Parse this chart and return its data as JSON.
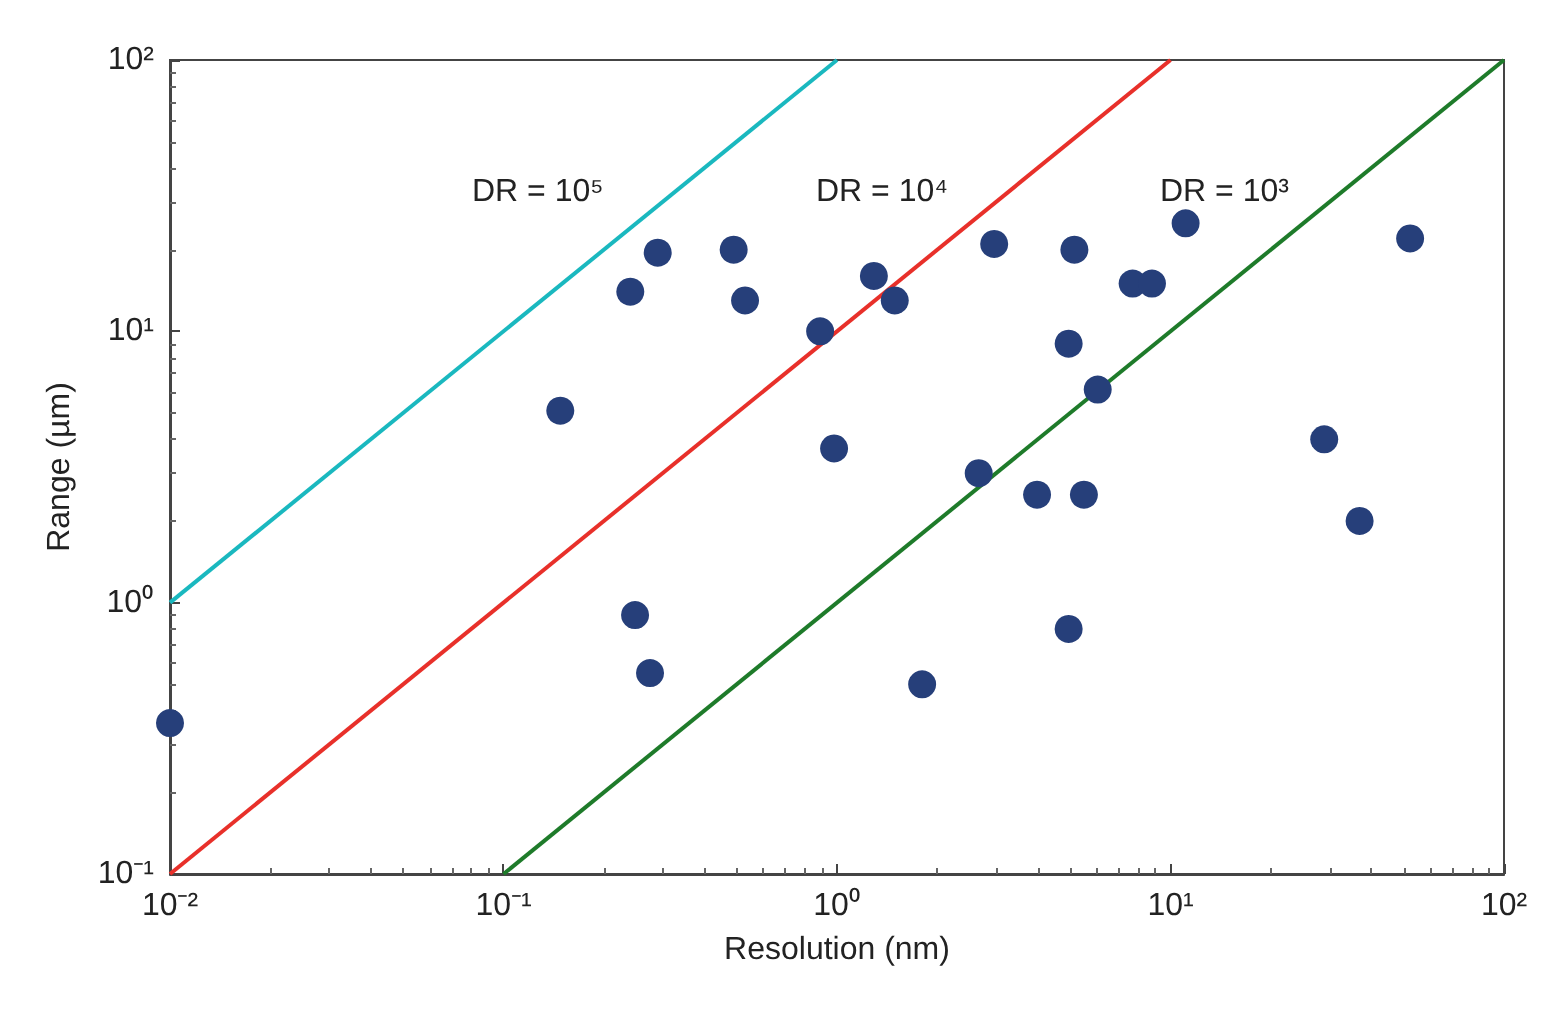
{
  "chart_data": {
    "type": "scatter",
    "xlabel": "Resolution (nm)",
    "ylabel": "Range (µm)",
    "log": "xy",
    "grid": false,
    "xlim": [
      0.01,
      100
    ],
    "ylim": [
      0.1,
      100
    ],
    "xticks": [
      {
        "value": 0.01,
        "label": "10⁻²"
      },
      {
        "value": 0.1,
        "label": "10⁻¹"
      },
      {
        "value": 1,
        "label": "10⁰"
      },
      {
        "value": 10,
        "label": "10¹"
      },
      {
        "value": 100,
        "label": "10²"
      }
    ],
    "yticks": [
      {
        "value": 0.1,
        "label": "10⁻¹"
      },
      {
        "value": 1,
        "label": "10⁰"
      },
      {
        "value": 10,
        "label": "10¹"
      },
      {
        "value": 100,
        "label": "10²"
      }
    ],
    "series": [
      {
        "type": "line",
        "marker": "none",
        "color": "#1ab8bf",
        "x": [
          0.01,
          1
        ],
        "values": [
          1,
          100
        ]
      },
      {
        "type": "line",
        "marker": "none",
        "color": "#e8302a",
        "x": [
          0.01,
          10
        ],
        "values": [
          0.1,
          100
        ]
      },
      {
        "type": "line",
        "marker": "none",
        "color": "#1e7b2a",
        "x": [
          0.1,
          100
        ],
        "values": [
          0.1,
          100
        ]
      },
      {
        "marker": "circle",
        "color": "#263f7a",
        "x": [
          0.01,
          0.148,
          0.24,
          0.29,
          0.49,
          0.53,
          0.89,
          1.29,
          1.49,
          0.98,
          2.96,
          5.15,
          4.95,
          6.05,
          7.7,
          8.8,
          11.1,
          2.66,
          3.98,
          5.5,
          4.95,
          1.8,
          0.248,
          0.275,
          28.9,
          36.9,
          52.3
        ],
        "values": [
          0.36,
          5.1,
          14,
          19.5,
          20,
          13,
          10,
          16,
          13,
          3.7,
          21,
          20,
          9,
          6.1,
          15,
          15,
          25,
          3,
          2.5,
          2.5,
          0.8,
          0.5,
          0.9,
          0.55,
          4,
          2,
          22
        ]
      }
    ],
    "annotations": [
      "DR = 10⁵",
      "DR = 10⁴",
      "DR = 10³"
    ]
  }
}
